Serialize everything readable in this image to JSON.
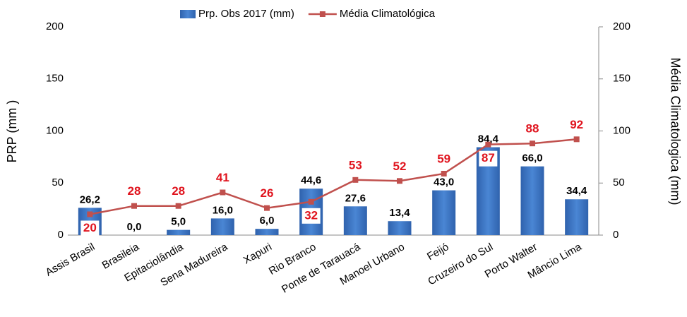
{
  "chart_data": {
    "type": "bar",
    "categories": [
      "Assis Brasil",
      "Brasileia",
      "Epitaciolândia",
      "Sena Madureira",
      "Xapuri",
      "Rio Branco",
      "Ponte de Tarauacá",
      "Manoel Urbano",
      "Feijó",
      "Cruzeiro do Sul",
      "Porto Walter",
      "Mâncio Lima"
    ],
    "series": [
      {
        "name": "Prp. Obs 2017 (mm)",
        "color": "#3f78c4",
        "type": "bar",
        "values": [
          26.2,
          0.0,
          5.0,
          16.0,
          6.0,
          44.6,
          27.6,
          13.4,
          43.0,
          84.4,
          66.0,
          34.4
        ],
        "value_labels": [
          "26,2",
          "0,0",
          "5,0",
          "16,0",
          "6,0",
          "44,6",
          "27,6",
          "13,4",
          "43,0",
          "84,4",
          "66,0",
          "34,4"
        ]
      },
      {
        "name": "Média Climatológica",
        "color": "#c0504d",
        "type": "line",
        "axis": "y2",
        "values": [
          20,
          28,
          28,
          41,
          26,
          32,
          53,
          52,
          59,
          87,
          88,
          92
        ]
      }
    ],
    "y_label": "PRP (mm )",
    "y2_label": "Média Climatologica  (mm)",
    "ylim": [
      0,
      200
    ],
    "yticks": [
      0,
      50,
      100,
      150,
      200
    ],
    "y2lim": [
      0,
      200
    ],
    "y2ticks": [
      0,
      50,
      100,
      150,
      200
    ],
    "legend": "top"
  }
}
